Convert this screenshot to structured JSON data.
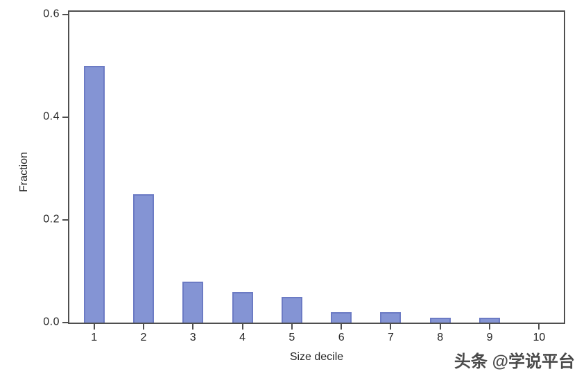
{
  "chart_data": {
    "type": "bar",
    "categories": [
      "1",
      "2",
      "3",
      "4",
      "5",
      "6",
      "7",
      "8",
      "9",
      "10"
    ],
    "values": [
      0.5,
      0.25,
      0.08,
      0.06,
      0.05,
      0.02,
      0.02,
      0.01,
      0.01,
      0.0
    ],
    "title": "",
    "xlabel": "Size decile",
    "ylabel": "Fraction",
    "ylim": [
      0,
      0.605
    ],
    "yticks": [
      0.0,
      0.2,
      0.4,
      0.6
    ],
    "ytick_labels": [
      "0.0",
      "0.2",
      "0.4",
      "0.6"
    ],
    "grid": false,
    "frame": true,
    "legend": null,
    "bar_fill": "#8494d4",
    "bar_border": "#6c7bc4"
  },
  "axis": {
    "line_color": "#4f4f4f",
    "text_color": "#262626"
  },
  "watermark": {
    "text": "头条 @学说平台"
  }
}
